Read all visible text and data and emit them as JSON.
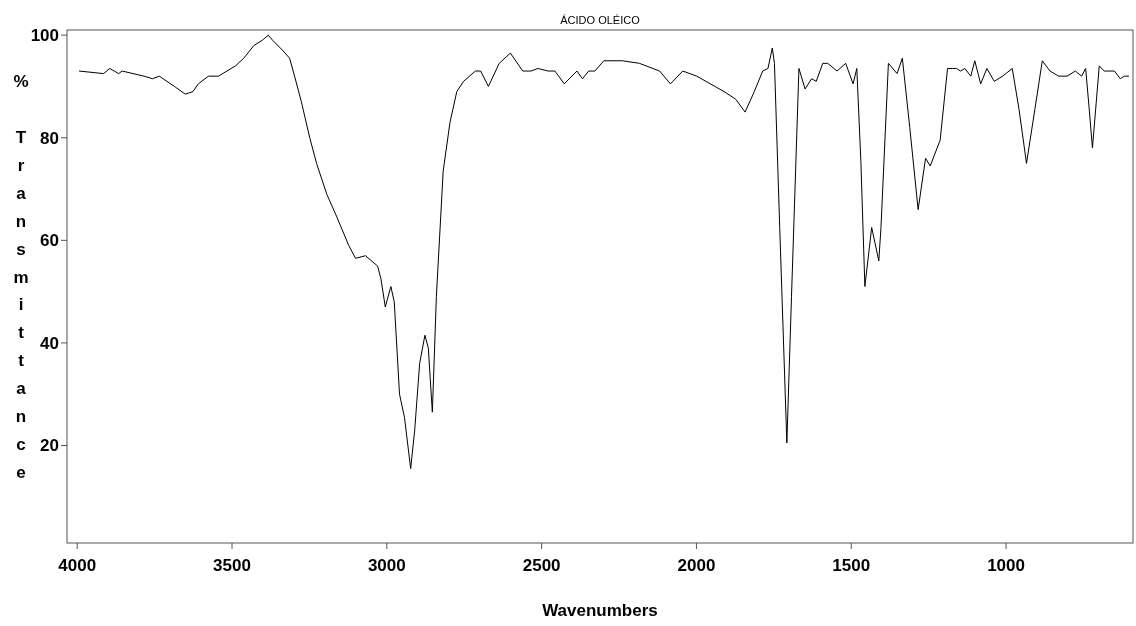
{
  "chart_data": {
    "type": "line",
    "title": "ÁCIDO OLÉICO",
    "xlabel": "Wavenumbers",
    "ylabel": "% Transmittance",
    "xlim": [
      4033,
      590
    ],
    "ylim": [
      1,
      101
    ],
    "xticks": [
      4000,
      3500,
      3000,
      2500,
      2000,
      1500,
      1000
    ],
    "yticks": [
      20,
      40,
      60,
      80,
      100
    ],
    "grid": false,
    "marker": "none",
    "line_style": "solid",
    "series": [
      {
        "color": "#000000",
        "x": [
          3994,
          3915,
          3895,
          3866,
          3855,
          3784,
          3757,
          3735,
          3686,
          3651,
          3626,
          3609,
          3576,
          3544,
          3489,
          3462,
          3429,
          3402,
          3383,
          3369,
          3336,
          3314,
          3298,
          3276,
          3249,
          3227,
          3194,
          3161,
          3123,
          3101,
          3069,
          3030,
          3019,
          3005,
          2987,
          2976,
          2959,
          2943,
          2923,
          2910,
          2894,
          2877,
          2866,
          2853,
          2840,
          2818,
          2796,
          2774,
          2752,
          2714,
          2697,
          2672,
          2637,
          2601,
          2561,
          2534,
          2512,
          2479,
          2457,
          2427,
          2386,
          2368,
          2348,
          2328,
          2299,
          2239,
          2184,
          2119,
          2084,
          2044,
          1999,
          1911,
          1873,
          1843,
          1813,
          1786,
          1769,
          1755,
          1748,
          1731,
          1708,
          1693,
          1669,
          1649,
          1628,
          1613,
          1592,
          1576,
          1546,
          1518,
          1494,
          1482,
          1469,
          1456,
          1434,
          1411,
          1404,
          1380,
          1352,
          1335,
          1311,
          1284,
          1260,
          1245,
          1213,
          1189,
          1174,
          1160,
          1147,
          1133,
          1114,
          1101,
          1082,
          1062,
          1038,
          1011,
          980,
          958,
          934,
          907,
          883,
          858,
          830,
          803,
          776,
          756,
          743,
          732,
          721,
          699,
          683,
          650,
          631,
          618,
          603
        ],
        "values": [
          93,
          92.5,
          93.5,
          92.5,
          93,
          92,
          91.5,
          92,
          90,
          88.5,
          89,
          90.5,
          92,
          92,
          94,
          95.5,
          98,
          99,
          100,
          99,
          97,
          95.5,
          92,
          87,
          80,
          75,
          69,
          64.5,
          59,
          56.5,
          57,
          55,
          52.5,
          47,
          51,
          48,
          30,
          25.5,
          15.5,
          23,
          36,
          41.5,
          39,
          26.5,
          49,
          73.5,
          83,
          89,
          91,
          93,
          93,
          90,
          94.5,
          96.5,
          93,
          93,
          93.5,
          93,
          93,
          90.5,
          93,
          91.5,
          93,
          93,
          95,
          95,
          94.5,
          93,
          90.5,
          93,
          92,
          89,
          87.5,
          85,
          89,
          93,
          93.5,
          97.5,
          94.5,
          62.5,
          20.5,
          49,
          93.5,
          89.5,
          91.5,
          91,
          94.5,
          94.5,
          93,
          94.5,
          90.5,
          93.5,
          75.5,
          51,
          62.5,
          56,
          62.5,
          94.5,
          92.5,
          95.5,
          82,
          66,
          76,
          74.5,
          79.5,
          93.5,
          93.5,
          93.5,
          93,
          93.5,
          92,
          95,
          90.5,
          93.5,
          91,
          92,
          93.5,
          85.5,
          75,
          85.5,
          95,
          93,
          92,
          92,
          93,
          92,
          93.5,
          86,
          78,
          94,
          93,
          93,
          91.5,
          92,
          92
        ]
      }
    ]
  }
}
